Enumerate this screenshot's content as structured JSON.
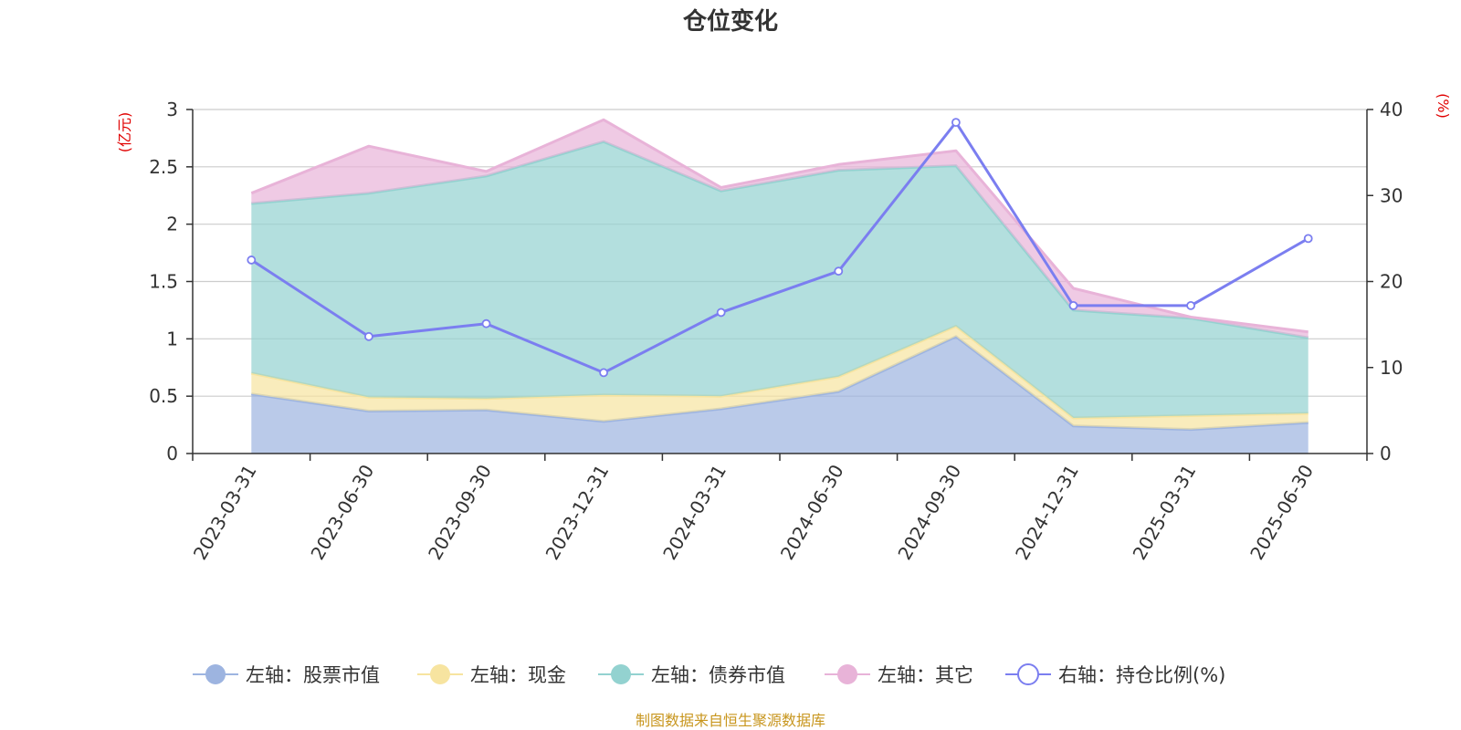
{
  "chart_data": {
    "type": "area",
    "title": "仓位变化",
    "categories": [
      "2023-03-31",
      "2023-06-30",
      "2023-09-30",
      "2023-12-31",
      "2024-03-31",
      "2024-06-30",
      "2024-09-30",
      "2024-12-31",
      "2025-03-31",
      "2025-06-30"
    ],
    "left_axis": {
      "unit_label": "(亿元)",
      "ylim": [
        0,
        3
      ],
      "ticks": [
        "0",
        "0.5",
        "1",
        "1.5",
        "2",
        "2.5",
        "3"
      ]
    },
    "right_axis": {
      "unit_label": "(%)",
      "ylim": [
        0,
        40
      ],
      "ticks": [
        "0",
        "10",
        "20",
        "30",
        "40"
      ]
    },
    "grid": true,
    "legend_position": "bottom",
    "series": [
      {
        "name": "左轴：股票市值",
        "axis": "left",
        "kind": "stacked-area",
        "color": "#9db4e0",
        "values": [
          0.52,
          0.37,
          0.38,
          0.28,
          0.39,
          0.54,
          1.02,
          0.24,
          0.21,
          0.27
        ]
      },
      {
        "name": "左轴：现金",
        "axis": "left",
        "kind": "stacked-area",
        "color": "#f7e4a0",
        "values": [
          0.18,
          0.12,
          0.1,
          0.23,
          0.11,
          0.13,
          0.09,
          0.07,
          0.12,
          0.08
        ]
      },
      {
        "name": "左轴：债券市值",
        "axis": "left",
        "kind": "stacked-area",
        "color": "#93d2d0",
        "values": [
          1.48,
          1.78,
          1.94,
          2.21,
          1.79,
          1.8,
          1.4,
          0.94,
          0.85,
          0.66
        ]
      },
      {
        "name": "左轴：其它",
        "axis": "left",
        "kind": "stacked-area",
        "color": "#e8b3d8",
        "values": [
          0.09,
          0.41,
          0.04,
          0.19,
          0.03,
          0.05,
          0.13,
          0.19,
          0.01,
          0.05
        ]
      },
      {
        "name": "右轴：持仓比例(%)",
        "axis": "right",
        "kind": "line",
        "color": "#7b7ef0",
        "values": [
          22.5,
          13.6,
          15.1,
          9.4,
          16.4,
          21.2,
          38.5,
          17.2,
          17.2,
          25.0
        ]
      }
    ]
  },
  "footer": {
    "source": "制图数据来自恒生聚源数据库"
  }
}
